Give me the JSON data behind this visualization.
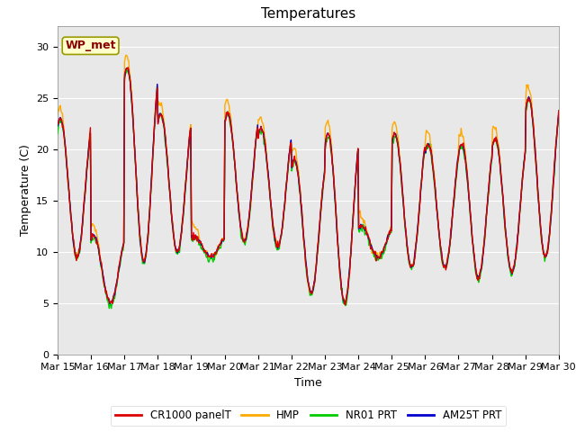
{
  "title": "Temperatures",
  "ylabel": "Temperature (C)",
  "xlabel": "Time",
  "annotation": "WP_met",
  "xticklabels": [
    "Mar 15",
    "Mar 16",
    "Mar 17",
    "Mar 18",
    "Mar 19",
    "Mar 20",
    "Mar 21",
    "Mar 22",
    "Mar 23",
    "Mar 24",
    "Mar 25",
    "Mar 26",
    "Mar 27",
    "Mar 28",
    "Mar 29",
    "Mar 30"
  ],
  "ylim": [
    0,
    32
  ],
  "yticks": [
    0,
    5,
    10,
    15,
    20,
    25,
    30
  ],
  "legend": [
    "CR1000 panelT",
    "HMP",
    "NR01 PRT",
    "AM25T PRT"
  ],
  "colors": [
    "#dd0000",
    "#ffaa00",
    "#00cc00",
    "#0000cc"
  ],
  "linewidth": 1.0,
  "background_color": "#e8e8e8",
  "title_fontsize": 11,
  "tick_fontsize": 8,
  "day_maxes": [
    23.0,
    11.5,
    28.0,
    23.5,
    11.5,
    23.5,
    22.0,
    19.0,
    21.5,
    12.5,
    21.5,
    20.5,
    20.5,
    21.0,
    25.0
  ],
  "day_mins": [
    9.5,
    5.0,
    9.0,
    10.0,
    9.5,
    11.0,
    10.5,
    6.0,
    5.0,
    9.5,
    8.5,
    8.5,
    7.5,
    8.0,
    9.5
  ],
  "n_days": 15,
  "n_per_day": 48
}
